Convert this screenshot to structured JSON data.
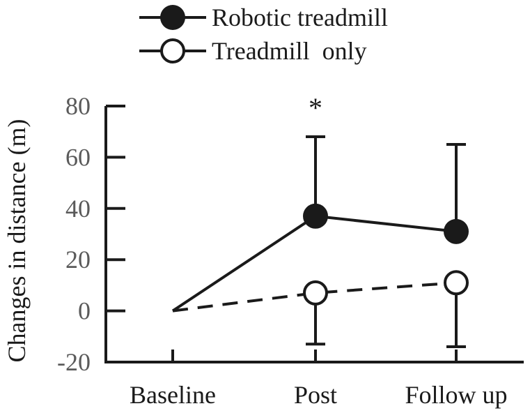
{
  "chart_data": {
    "type": "line",
    "categories": [
      "Baseline",
      "Post",
      "Follow up"
    ],
    "ylabel": "Changes in distance (m)",
    "ylim": [
      -20,
      80
    ],
    "yticks": [
      "80",
      "60",
      "40",
      "20",
      "0",
      "-20"
    ],
    "ytick_values": [
      80,
      60,
      40,
      20,
      0,
      -20
    ],
    "grid": false,
    "legend_position": "top",
    "annotations": [
      {
        "text": "*",
        "category": "Post",
        "y": 80
      }
    ],
    "series": [
      {
        "name": "Robotic treadmill",
        "marker": "filled-circle",
        "line_style": "solid",
        "values": [
          0,
          37,
          31
        ],
        "error_upper": [
          0,
          68,
          65
        ],
        "error_lower": [
          null,
          null,
          null
        ]
      },
      {
        "name": "Treadmill  only",
        "marker": "open-circle",
        "line_style": "dashed",
        "values": [
          0,
          7,
          11
        ],
        "error_upper": [
          null,
          null,
          null
        ],
        "error_lower": [
          0,
          -13,
          -14
        ]
      }
    ],
    "colors": {
      "line": "#1a1a1a",
      "text": "#5a5a5a",
      "background": "#ffffff"
    }
  }
}
